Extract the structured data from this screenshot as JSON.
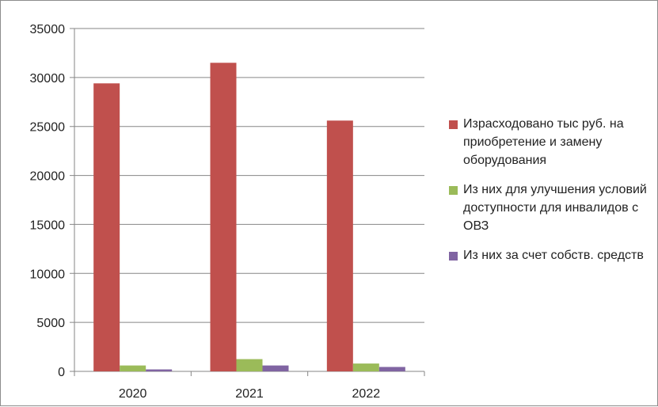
{
  "chart_data": {
    "type": "bar",
    "categories": [
      "2020",
      "2021",
      "2022"
    ],
    "series": [
      {
        "name": "Израсходовано тыс руб. на приобретение и замену оборудования",
        "color": "#c0504d",
        "values": [
          29400,
          31500,
          25600
        ]
      },
      {
        "name": "Из них для улучшения условий доступности для инвалидов с ОВЗ",
        "color": "#9bbb59",
        "values": [
          600,
          1250,
          800
        ]
      },
      {
        "name": "Из них за счет собств. средств",
        "color": "#8064a2",
        "values": [
          200,
          600,
          450
        ]
      }
    ],
    "ylim": [
      0,
      35000
    ],
    "yticks": [
      "0",
      "5000",
      "10000",
      "15000",
      "20000",
      "25000",
      "30000",
      "35000"
    ],
    "grid": true,
    "legend_position": "right"
  }
}
